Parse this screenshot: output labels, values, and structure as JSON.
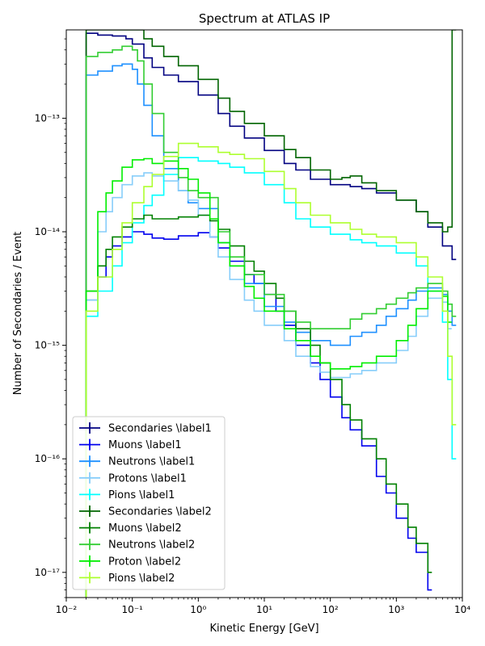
{
  "chart_data": {
    "type": "line",
    "title": "Spectrum at ATLAS IP",
    "xlabel": "Kinetic Energy [GeV]",
    "ylabel": "Number of Secondaries / Event",
    "xscale": "log",
    "yscale": "log",
    "xlim": [
      0.01,
      10000
    ],
    "ylim": [
      6e-18,
      6e-13
    ],
    "x_ticks": [
      0.01,
      0.1,
      1,
      10,
      100,
      1000,
      10000
    ],
    "x_tick_labels": [
      "10⁻²",
      "10⁻¹",
      "10⁰",
      "10¹",
      "10²",
      "10³",
      "10⁴"
    ],
    "y_ticks": [
      1e-17,
      1e-16,
      1e-15,
      1e-14,
      1e-13
    ],
    "y_tick_labels": [
      "10⁻¹⁷",
      "10⁻¹⁶",
      "10⁻¹⁵",
      "10⁻¹⁴",
      "10⁻¹³"
    ],
    "grid": false,
    "legend_position": "lower-left",
    "series": [
      {
        "name": "Secondaries \\label1",
        "color": "#000080",
        "x": [
          0.02,
          0.03,
          0.05,
          0.08,
          0.1,
          0.15,
          0.2,
          0.3,
          0.5,
          1,
          2,
          3,
          5,
          10,
          20,
          30,
          50,
          100,
          200,
          300,
          500,
          1000,
          2000,
          3000,
          5000,
          7000
        ],
        "y": [
          5.6e-13,
          5.4e-13,
          5.3e-13,
          5e-13,
          4.5e-13,
          3.4e-13,
          2.8e-13,
          2.4e-13,
          2.1e-13,
          1.6e-13,
          1.1e-13,
          8.5e-14,
          6.7e-14,
          5.2e-14,
          4e-14,
          3.5e-14,
          2.9e-14,
          2.6e-14,
          2.5e-14,
          2.4e-14,
          2.2e-14,
          1.9e-14,
          1.5e-14,
          1.1e-14,
          7.5e-15,
          5.7e-15
        ]
      },
      {
        "name": "Muons \\label1",
        "color": "#0000ee",
        "x": [
          0.02,
          0.03,
          0.04,
          0.05,
          0.07,
          0.1,
          0.15,
          0.2,
          0.3,
          0.5,
          1,
          1.5,
          2,
          3,
          5,
          7,
          10,
          15,
          20,
          30,
          50,
          70,
          100,
          150,
          200,
          300,
          500,
          700,
          1000,
          1500,
          2000,
          3000
        ],
        "y": [
          2.5e-15,
          4e-15,
          6e-15,
          7.5e-15,
          9e-15,
          1e-14,
          9.5e-15,
          8.8e-15,
          8.6e-15,
          9.2e-15,
          9.8e-15,
          9e-15,
          7.2e-15,
          5.5e-15,
          4.2e-15,
          3.5e-15,
          2.8e-15,
          2e-15,
          1.5e-15,
          1e-15,
          7e-16,
          5e-16,
          3.5e-16,
          2.3e-16,
          1.8e-16,
          1.3e-16,
          7e-17,
          5e-17,
          3e-17,
          2e-17,
          1.5e-17,
          7e-18
        ]
      },
      {
        "name": "Neutrons \\label1",
        "color": "#1e90ff",
        "x": [
          0.02,
          0.03,
          0.05,
          0.07,
          0.1,
          0.12,
          0.15,
          0.2,
          0.3,
          0.5,
          0.7,
          1,
          2,
          3,
          5,
          10,
          20,
          30,
          50,
          100,
          200,
          300,
          500,
          700,
          1000,
          1500,
          2000,
          3000,
          5000,
          6000,
          7000
        ],
        "y": [
          2.4e-13,
          2.6e-13,
          2.9e-13,
          3e-13,
          2.7e-13,
          2e-13,
          1.3e-13,
          7e-14,
          3.6e-14,
          2.3e-14,
          1.8e-14,
          1.6e-14,
          8e-15,
          5e-15,
          3.5e-15,
          2.2e-15,
          1.6e-15,
          1.3e-15,
          1.1e-15,
          1e-15,
          1.2e-15,
          1.3e-15,
          1.5e-15,
          1.8e-15,
          2.1e-15,
          2.5e-15,
          3e-15,
          3.2e-15,
          2.8e-15,
          2e-15,
          1.5e-15
        ]
      },
      {
        "name": "Protons \\label1",
        "color": "#87cefa",
        "x": [
          0.02,
          0.03,
          0.04,
          0.05,
          0.07,
          0.1,
          0.15,
          0.2,
          0.3,
          0.5,
          0.7,
          1,
          1.5,
          2,
          3,
          5,
          7,
          10,
          20,
          30,
          50,
          70,
          100,
          200,
          300,
          500,
          1000,
          1500,
          2000,
          3000,
          5000,
          6000
        ],
        "y": [
          2.5e-15,
          1e-14,
          1.5e-14,
          2e-14,
          2.6e-14,
          3.1e-14,
          3.3e-14,
          3.1e-14,
          2.8e-14,
          2.3e-14,
          1.9e-14,
          1.4e-14,
          9e-15,
          6e-15,
          3.8e-15,
          2.5e-15,
          2e-15,
          1.5e-15,
          1.1e-15,
          8e-16,
          6.5e-16,
          5.8e-16,
          5.2e-16,
          5.6e-16,
          6e-16,
          7e-16,
          9e-16,
          1.2e-15,
          1.8e-15,
          2.6e-15,
          2.4e-15,
          1.4e-15
        ]
      },
      {
        "name": "Pions \\label1",
        "color": "#00ffff",
        "x": [
          0.02,
          0.03,
          0.05,
          0.07,
          0.1,
          0.15,
          0.2,
          0.3,
          0.5,
          0.7,
          1,
          2,
          3,
          5,
          10,
          20,
          30,
          50,
          100,
          200,
          300,
          500,
          1000,
          2000,
          3000,
          5000,
          6000,
          7000
        ],
        "y": [
          1.8e-15,
          3e-15,
          5e-15,
          8e-15,
          1.2e-14,
          1.7e-14,
          2.1e-14,
          3.2e-14,
          4.5e-14,
          4.5e-14,
          4.2e-14,
          4e-14,
          3.7e-14,
          3.3e-14,
          2.6e-14,
          1.8e-14,
          1.3e-14,
          1.1e-14,
          9.5e-15,
          8.5e-15,
          8e-15,
          7.5e-15,
          6.5e-15,
          5e-15,
          3e-15,
          1.6e-15,
          5e-16,
          1e-16
        ]
      },
      {
        "name": "Secondaries \\label2",
        "color": "#006400",
        "x": [
          0.02,
          0.03,
          0.05,
          0.08,
          0.1,
          0.15,
          0.2,
          0.3,
          0.5,
          1,
          2,
          3,
          5,
          10,
          20,
          30,
          50,
          100,
          150,
          200,
          300,
          500,
          1000,
          2000,
          3000,
          5000,
          6000,
          7000
        ],
        "y": [
          6e-13,
          6e-13,
          6e-13,
          6e-13,
          6e-13,
          5e-13,
          4.3e-13,
          3.5e-13,
          2.9e-13,
          2.2e-13,
          1.5e-13,
          1.15e-13,
          9e-14,
          7e-14,
          5.3e-14,
          4.5e-14,
          3.5e-14,
          2.9e-14,
          3e-14,
          3.1e-14,
          2.7e-14,
          2.3e-14,
          1.9e-14,
          1.5e-14,
          1.2e-14,
          1e-14,
          1.1e-14,
          6e-13
        ]
      },
      {
        "name": "Muons \\label2",
        "color": "#008000",
        "x": [
          0.02,
          0.03,
          0.04,
          0.05,
          0.07,
          0.1,
          0.15,
          0.2,
          0.3,
          0.5,
          1,
          1.5,
          2,
          3,
          5,
          7,
          10,
          15,
          20,
          30,
          50,
          70,
          100,
          150,
          200,
          300,
          500,
          700,
          1000,
          1500,
          2000,
          3000
        ],
        "y": [
          3e-15,
          5e-15,
          7e-15,
          9e-15,
          1.1e-14,
          1.3e-14,
          1.4e-14,
          1.3e-14,
          1.3e-14,
          1.35e-14,
          1.4e-14,
          1.25e-14,
          1.05e-14,
          7.5e-15,
          5.5e-15,
          4.5e-15,
          3.5e-15,
          2.6e-15,
          2e-15,
          1.4e-15,
          1e-15,
          7e-16,
          5e-16,
          3e-16,
          2.2e-16,
          1.5e-16,
          1e-16,
          6e-17,
          4e-17,
          2.5e-17,
          1.8e-17,
          1e-17
        ]
      },
      {
        "name": "Neutrons \\label2",
        "color": "#32cd32",
        "x": [
          0.02,
          0.03,
          0.05,
          0.07,
          0.1,
          0.12,
          0.15,
          0.2,
          0.3,
          0.5,
          0.7,
          1,
          2,
          3,
          5,
          10,
          20,
          30,
          50,
          100,
          200,
          300,
          500,
          700,
          1000,
          1500,
          2000,
          3000,
          5000,
          6000,
          7000
        ],
        "y": [
          3.5e-13,
          3.8e-13,
          4e-13,
          4.3e-13,
          4e-13,
          3.2e-13,
          2e-13,
          1.1e-13,
          5e-14,
          3e-14,
          2.3e-14,
          2e-14,
          1e-14,
          6e-15,
          4.2e-15,
          2.8e-15,
          2e-15,
          1.6e-15,
          1.4e-15,
          1.4e-15,
          1.7e-15,
          1.9e-15,
          2.1e-15,
          2.3e-15,
          2.6e-15,
          2.9e-15,
          3.2e-15,
          3.5e-15,
          3e-15,
          2.3e-15,
          1.8e-15
        ]
      },
      {
        "name": "Proton \\label2",
        "color": "#00ee00",
        "x": [
          0.02,
          0.03,
          0.04,
          0.05,
          0.07,
          0.1,
          0.15,
          0.2,
          0.3,
          0.5,
          0.7,
          1,
          1.5,
          2,
          3,
          5,
          7,
          10,
          20,
          30,
          50,
          70,
          100,
          200,
          300,
          500,
          1000,
          1500,
          2000,
          3000,
          5000,
          6000
        ],
        "y": [
          3e-15,
          1.5e-14,
          2.2e-14,
          2.8e-14,
          3.7e-14,
          4.3e-14,
          4.4e-14,
          4e-14,
          4.2e-14,
          3.6e-14,
          2.9e-14,
          2.2e-14,
          1.3e-14,
          8e-15,
          5e-15,
          3.3e-15,
          2.6e-15,
          2e-15,
          1.4e-15,
          1.1e-15,
          8e-16,
          7e-16,
          6.2e-16,
          6.5e-16,
          7e-16,
          8e-16,
          1.1e-15,
          1.5e-15,
          2.1e-15,
          3e-15,
          2.7e-15,
          1.6e-15
        ]
      },
      {
        "name": "Pions \\label2",
        "color": "#adff2f",
        "x": [
          0.02,
          0.03,
          0.05,
          0.07,
          0.1,
          0.15,
          0.2,
          0.3,
          0.5,
          0.7,
          1,
          2,
          3,
          5,
          10,
          20,
          30,
          50,
          100,
          200,
          300,
          500,
          1000,
          2000,
          3000,
          5000,
          6000,
          7000
        ],
        "y": [
          2e-15,
          4e-15,
          7e-15,
          1.2e-14,
          1.8e-14,
          2.5e-14,
          3.2e-14,
          4.6e-14,
          6e-14,
          6e-14,
          5.6e-14,
          5e-14,
          4.8e-14,
          4.4e-14,
          3.4e-14,
          2.4e-14,
          1.8e-14,
          1.4e-14,
          1.2e-14,
          1.05e-14,
          9.5e-15,
          9e-15,
          8e-15,
          6e-15,
          4e-15,
          2e-15,
          8e-16,
          2e-16
        ]
      }
    ]
  }
}
